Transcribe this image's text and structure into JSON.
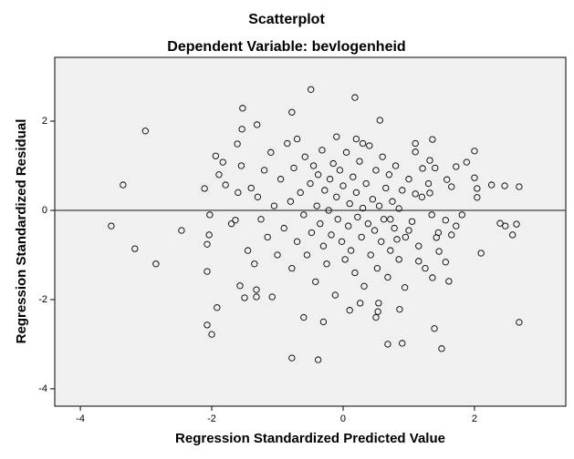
{
  "chart_data": {
    "type": "scatter",
    "title": "Scatterplot",
    "subtitle": "Dependent Variable: bevlogenheid",
    "x_label": "Regression Standardized Predicted Value",
    "y_label": "Regression Standardized Residual",
    "xlim": [
      -4.39,
      3.39
    ],
    "ylim": [
      -4.39,
      3.43
    ],
    "xticks": [
      -4,
      -2,
      0,
      2
    ],
    "yticks": [
      -4,
      -2,
      0,
      2
    ],
    "reference_line_y": 0,
    "color": "#000000",
    "background": "#f0f0f0",
    "x": [
      -3.53,
      -3.35,
      -3.17,
      -3.01,
      -2.85,
      -2.46,
      -2.11,
      -2.07,
      -2.07,
      -2.0,
      -1.92,
      -2.03,
      -1.94,
      -1.83,
      -1.89,
      -1.79,
      -2.04,
      -2.07,
      -1.64,
      -1.61,
      -1.53,
      -1.54,
      -1.57,
      -1.5,
      -1.31,
      -1.32,
      -1.32,
      -1.08,
      -0.78,
      -0.78,
      -0.38,
      -0.49,
      0.18,
      0.56,
      0.1,
      0.26,
      0.53,
      0.54,
      0.86,
      0.68,
      0.9,
      0.94,
      1.39,
      1.5,
      1.61,
      2.1,
      2.64,
      2.68,
      2.68,
      2.46,
      2.26,
      2.58,
      2.47,
      2.39,
      2.04,
      2.04,
      2.0,
      2.0,
      1.88,
      1.72,
      1.32,
      1.36,
      1.1,
      1.21,
      1.58,
      1.65,
      1.81,
      1.72,
      1.56,
      1.65,
      1.46,
      1.56,
      1.42,
      1.32,
      1.1,
      1.36,
      1.15,
      0.82,
      1.0,
      0.85,
      0.72,
      -1.4,
      -1.3,
      -1.25,
      -1.2,
      -1.15,
      -1.1,
      -1.05,
      -1.0,
      -0.95,
      -0.9,
      -0.85,
      -0.8,
      -0.78,
      -0.75,
      -0.7,
      -0.65,
      -0.6,
      -0.58,
      -0.55,
      -0.5,
      -0.48,
      -0.45,
      -0.42,
      -0.4,
      -0.38,
      -0.35,
      -0.32,
      -0.3,
      -0.28,
      -0.25,
      -0.22,
      -0.2,
      -0.18,
      -0.15,
      -0.12,
      -0.1,
      -0.08,
      -0.05,
      -0.02,
      0.0,
      0.03,
      0.05,
      0.08,
      0.1,
      0.12,
      0.15,
      0.18,
      0.2,
      0.22,
      0.25,
      0.28,
      0.3,
      0.32,
      0.35,
      0.38,
      0.4,
      0.42,
      0.45,
      0.48,
      0.5,
      0.52,
      0.55,
      0.58,
      0.6,
      0.62,
      0.65,
      0.68,
      0.7,
      0.72,
      0.75,
      0.78,
      0.8,
      0.85,
      0.9,
      0.95,
      1.0,
      1.05,
      1.1,
      1.15,
      1.2,
      1.25,
      1.3,
      1.35,
      1.4,
      1.45,
      -1.35,
      -1.45,
      -1.6,
      -1.7,
      -1.55,
      -0.6,
      -0.3,
      0.5,
      0.2,
      -0.1,
      0.3,
      -0.7
    ],
    "values": [
      -0.35,
      0.57,
      -0.86,
      1.78,
      -1.2,
      -0.45,
      0.49,
      -1.37,
      -2.57,
      -2.78,
      -2.18,
      -0.1,
      1.22,
      1.08,
      0.8,
      0.57,
      -0.55,
      -0.76,
      -0.22,
      1.49,
      2.29,
      1.82,
      -1.69,
      -1.96,
      1.92,
      -1.78,
      -1.94,
      -1.94,
      2.2,
      -3.31,
      -3.35,
      2.71,
      2.53,
      2.02,
      -2.24,
      -2.08,
      -2.27,
      -2.08,
      -2.22,
      -3.0,
      -2.98,
      -1.73,
      -2.65,
      -3.1,
      -1.59,
      -0.96,
      -0.31,
      -2.51,
      0.53,
      0.55,
      0.57,
      -0.55,
      -0.35,
      -0.29,
      0.49,
      0.29,
      0.73,
      1.33,
      1.08,
      0.98,
      1.12,
      1.59,
      1.31,
      0.94,
      0.69,
      0.53,
      -0.1,
      -0.35,
      -0.22,
      -0.55,
      -0.92,
      -1.16,
      -0.61,
      0.39,
      0.37,
      -1.51,
      -1.14,
      -0.65,
      -0.45,
      0.04,
      -0.2,
      0.5,
      0.3,
      -0.2,
      0.9,
      -0.6,
      1.3,
      0.1,
      -1.0,
      0.7,
      -0.4,
      1.5,
      0.2,
      -1.3,
      0.95,
      -0.7,
      0.4,
      -0.1,
      1.2,
      -1.0,
      0.6,
      -0.5,
      1.0,
      -1.6,
      0.1,
      0.8,
      -0.3,
      1.35,
      -0.8,
      0.45,
      -1.2,
      0.0,
      0.7,
      -0.55,
      1.05,
      -1.9,
      0.3,
      -0.2,
      0.9,
      -0.7,
      0.55,
      -1.1,
      1.3,
      -0.35,
      0.15,
      -0.9,
      0.75,
      -1.4,
      0.4,
      -0.15,
      1.1,
      -0.6,
      0.05,
      -1.7,
      0.6,
      -0.3,
      1.45,
      -1.0,
      0.25,
      -0.45,
      0.9,
      -1.3,
      0.1,
      -0.7,
      1.2,
      -0.2,
      0.5,
      -1.5,
      0.8,
      -0.9,
      0.2,
      -0.4,
      1.0,
      -1.1,
      0.45,
      -0.6,
      0.7,
      -0.25,
      1.5,
      -0.8,
      0.3,
      -1.3,
      0.6,
      -0.1,
      0.95,
      -0.5,
      -1.2,
      -0.9,
      0.4,
      -0.3,
      1.0,
      -2.4,
      -2.5,
      -2.4,
      1.6,
      1.65,
      1.5,
      1.6
    ]
  }
}
